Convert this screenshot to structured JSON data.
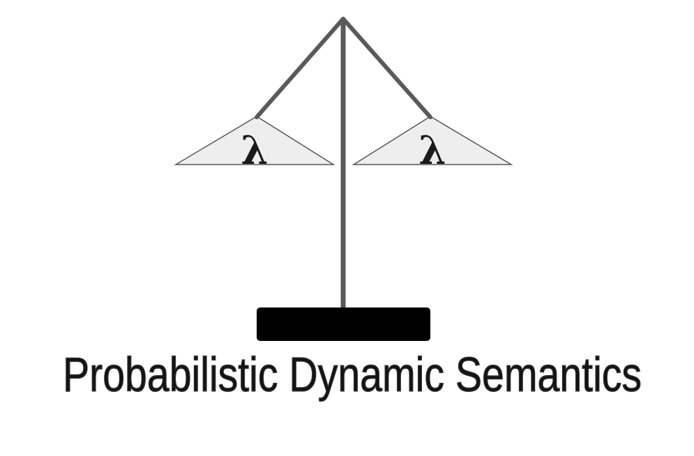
{
  "logo": {
    "left_pan_symbol": "λ",
    "right_pan_symbol": "λ",
    "title": "Probabilistic Dynamic Semantics"
  },
  "colors": {
    "beam": "#5a5a5a",
    "pan_fill": "#eeeeee",
    "pan_stroke": "#555555",
    "base": "#000000",
    "title_fill": "#141414",
    "title_stroke": "#3a3a3a",
    "symbol": "#1a1a1a"
  }
}
